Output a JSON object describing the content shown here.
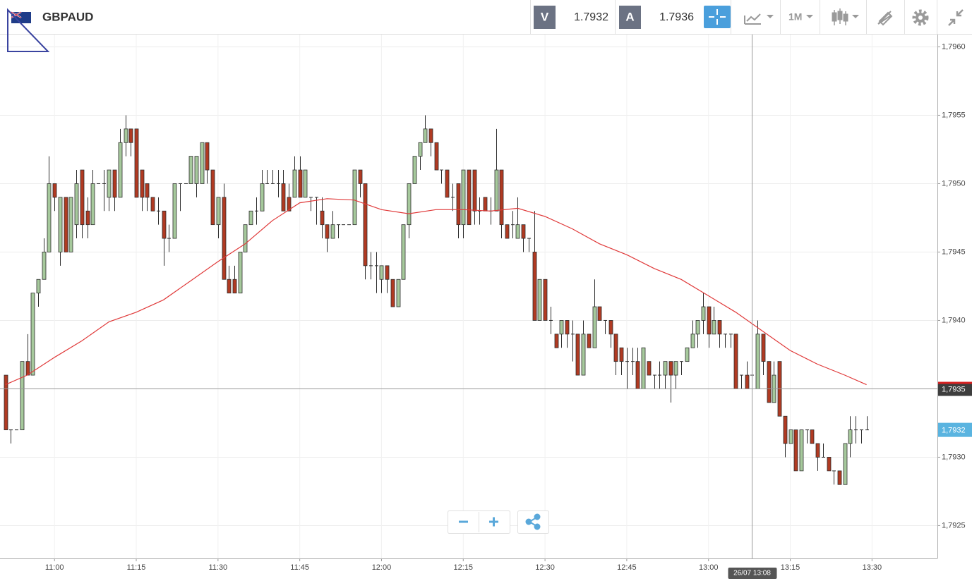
{
  "toolbar": {
    "symbol": "GBPAUD",
    "bid_label": "V",
    "bid": 1.7932,
    "ask_label": "A",
    "ask": 1.7936,
    "timeframe": "1M"
  },
  "chart_data": {
    "type": "candlestick",
    "up_color": "#a6c99c",
    "down_color": "#b03a22",
    "xlim": [
      "10:50",
      "13:42"
    ],
    "xticks": [
      "11:00",
      "11:15",
      "11:30",
      "11:45",
      "12:00",
      "12:15",
      "12:30",
      "12:45",
      "13:00",
      "13:15",
      "13:30"
    ],
    "ylim": [
      1.79226,
      1.79609
    ],
    "yticks": [
      {
        "value": 1.7925,
        "label": "1,7925"
      },
      {
        "value": 1.793,
        "label": "1,7930"
      },
      {
        "value": 1.7935,
        "label": "1,7935"
      },
      {
        "value": 1.794,
        "label": "1,7940"
      },
      {
        "value": 1.7945,
        "label": "1,7945"
      },
      {
        "value": 1.795,
        "label": "1,7950"
      },
      {
        "value": 1.7955,
        "label": "1,7955"
      },
      {
        "value": 1.796,
        "label": "1,7960"
      }
    ],
    "grid": true,
    "x": [
      "10:51",
      "10:52",
      "10:53",
      "10:54",
      "10:55",
      "10:56",
      "10:57",
      "10:58",
      "10:59",
      "11:00",
      "11:01",
      "11:02",
      "11:03",
      "11:04",
      "11:05",
      "11:06",
      "11:07",
      "11:08",
      "11:09",
      "11:10",
      "11:11",
      "11:12",
      "11:13",
      "11:14",
      "11:15",
      "11:16",
      "11:17",
      "11:18",
      "11:19",
      "11:20",
      "11:21",
      "11:22",
      "11:23",
      "11:24",
      "11:25",
      "11:26",
      "11:27",
      "11:28",
      "11:29",
      "11:30",
      "11:31",
      "11:32",
      "11:33",
      "11:34",
      "11:35",
      "11:36",
      "11:37",
      "11:38",
      "11:39",
      "11:40",
      "11:41",
      "11:42",
      "11:43",
      "11:44",
      "11:45",
      "11:46",
      "11:47",
      "11:48",
      "11:49",
      "11:50",
      "11:51",
      "11:52",
      "11:53",
      "11:54",
      "11:55",
      "11:56",
      "11:57",
      "11:58",
      "11:59",
      "12:00",
      "12:01",
      "12:02",
      "12:03",
      "12:04",
      "12:05",
      "12:06",
      "12:07",
      "12:08",
      "12:09",
      "12:10",
      "12:11",
      "12:12",
      "12:13",
      "12:14",
      "12:15",
      "12:16",
      "12:17",
      "12:18",
      "12:19",
      "12:20",
      "12:21",
      "12:22",
      "12:23",
      "12:24",
      "12:25",
      "12:26",
      "12:27",
      "12:28",
      "12:29",
      "12:30",
      "12:31",
      "12:32",
      "12:33",
      "12:34",
      "12:35",
      "12:36",
      "12:37",
      "12:38",
      "12:39",
      "12:40",
      "12:41",
      "12:42",
      "12:43",
      "12:44",
      "12:45",
      "12:46",
      "12:47",
      "12:48",
      "12:49",
      "12:50",
      "12:51",
      "12:52",
      "12:53",
      "12:54",
      "12:55",
      "12:56",
      "12:57",
      "12:58",
      "12:59",
      "13:00",
      "13:01",
      "13:02",
      "13:03",
      "13:04",
      "13:05",
      "13:06",
      "13:07",
      "13:08",
      "13:09",
      "13:10",
      "13:11",
      "13:12",
      "13:13",
      "13:14",
      "13:15",
      "13:16",
      "13:17",
      "13:18",
      "13:19",
      "13:20",
      "13:21",
      "13:22",
      "13:23",
      "13:24",
      "13:25",
      "13:26",
      "13:27",
      "13:28",
      "13:29"
    ],
    "open": [
      1.7936,
      1.7932,
      1.7932,
      1.7932,
      1.7937,
      1.7936,
      1.7942,
      1.7943,
      1.7945,
      1.795,
      1.7945,
      1.7949,
      1.7945,
      1.7947,
      1.7951,
      1.7948,
      1.7947,
      1.795,
      1.795,
      1.7949,
      1.7951,
      1.7949,
      1.7953,
      1.7954,
      1.7954,
      1.7951,
      1.795,
      1.7949,
      1.7948,
      1.7948,
      1.7946,
      1.7946,
      1.795,
      1.795,
      1.795,
      1.795,
      1.795,
      1.7953,
      1.7951,
      1.7947,
      1.7949,
      1.7943,
      1.7943,
      1.7942,
      1.7945,
      1.7947,
      1.7948,
      1.7948,
      1.795,
      1.795,
      1.795,
      1.795,
      1.7949,
      1.7949,
      1.7951,
      1.7949,
      1.7949,
      1.7949,
      1.7948,
      1.7947,
      1.7946,
      1.7947,
      1.7947,
      1.7947,
      1.7947,
      1.7951,
      1.795,
      1.7944,
      1.7944,
      1.7943,
      1.7944,
      1.7943,
      1.7941,
      1.7943,
      1.7947,
      1.795,
      1.7952,
      1.7953,
      1.7954,
      1.7953,
      1.7951,
      1.7951,
      1.7949,
      1.795,
      1.7947,
      1.7951,
      1.7951,
      1.7948,
      1.7949,
      1.7948,
      1.7948,
      1.7951,
      1.7947,
      1.7947,
      1.7946,
      1.7947,
      1.7946,
      1.7945,
      1.794,
      1.7943,
      1.794,
      1.7939,
      1.7939,
      1.794,
      1.7939,
      1.7939,
      1.7936,
      1.7939,
      1.7938,
      1.7941,
      1.794,
      1.794,
      1.7939,
      1.7938,
      1.7937,
      1.7937,
      1.7937,
      1.7935,
      1.7937,
      1.7936,
      1.7936,
      1.7936,
      1.7937,
      1.7936,
      1.7937,
      1.7937,
      1.7938,
      1.7939,
      1.794,
      1.7941,
      1.7939,
      1.794,
      1.7939,
      1.7939,
      1.7939,
      1.7936,
      1.7936,
      1.7936,
      1.7935,
      1.7939,
      1.7937,
      1.7934,
      1.7937,
      1.7933,
      1.7931,
      1.7932,
      1.7929,
      1.7932,
      1.7932,
      1.7931,
      1.793,
      1.793,
      1.7929,
      1.7929,
      1.7928,
      1.7931,
      1.7932,
      1.7932,
      1.7932
    ],
    "high": [
      1.7936,
      1.7932,
      1.7932,
      1.7937,
      1.7939,
      1.7942,
      1.7943,
      1.7946,
      1.7952,
      1.795,
      1.7949,
      1.7949,
      1.7949,
      1.7951,
      1.7951,
      1.7949,
      1.7951,
      1.795,
      1.7951,
      1.7951,
      1.7951,
      1.7954,
      1.7955,
      1.7954,
      1.7954,
      1.7951,
      1.795,
      1.7949,
      1.7949,
      1.7948,
      1.7947,
      1.795,
      1.795,
      1.795,
      1.7952,
      1.7952,
      1.7953,
      1.7953,
      1.7951,
      1.7949,
      1.795,
      1.7944,
      1.7944,
      1.7945,
      1.7947,
      1.7948,
      1.7949,
      1.7951,
      1.7951,
      1.7951,
      1.7951,
      1.7951,
      1.795,
      1.7952,
      1.7952,
      1.7951,
      1.7949,
      1.7949,
      1.7949,
      1.7947,
      1.7948,
      1.7947,
      1.7947,
      1.7947,
      1.7951,
      1.7951,
      1.795,
      1.7945,
      1.7945,
      1.7944,
      1.7944,
      1.7943,
      1.7943,
      1.7947,
      1.795,
      1.7952,
      1.7953,
      1.7955,
      1.7954,
      1.7953,
      1.7951,
      1.7951,
      1.795,
      1.795,
      1.7951,
      1.7951,
      1.7951,
      1.7949,
      1.7949,
      1.7949,
      1.7954,
      1.7951,
      1.7947,
      1.7948,
      1.7949,
      1.7947,
      1.7946,
      1.7948,
      1.7943,
      1.7943,
      1.7941,
      1.7939,
      1.794,
      1.794,
      1.794,
      1.7939,
      1.794,
      1.7939,
      1.7943,
      1.7941,
      1.794,
      1.794,
      1.7939,
      1.7938,
      1.7938,
      1.7938,
      1.7938,
      1.7938,
      1.7937,
      1.7936,
      1.7937,
      1.7937,
      1.7937,
      1.7937,
      1.7937,
      1.7938,
      1.794,
      1.794,
      1.7942,
      1.7941,
      1.7941,
      1.794,
      1.7939,
      1.7939,
      1.7939,
      1.7936,
      1.7937,
      1.7937,
      1.794,
      1.7939,
      1.7937,
      1.7937,
      1.7937,
      1.7933,
      1.7932,
      1.7932,
      1.7932,
      1.7932,
      1.7932,
      1.7931,
      1.7931,
      1.793,
      1.7929,
      1.7929,
      1.7931,
      1.7933,
      1.7933,
      1.7932,
      1.7933
    ],
    "low": [
      1.7932,
      1.7931,
      1.7932,
      1.7932,
      1.7936,
      1.7936,
      1.7941,
      1.7943,
      1.7945,
      1.7948,
      1.7944,
      1.7945,
      1.7945,
      1.7946,
      1.7946,
      1.7946,
      1.7947,
      1.795,
      1.7948,
      1.7948,
      1.7948,
      1.7949,
      1.7952,
      1.7952,
      1.7949,
      1.7948,
      1.7948,
      1.7948,
      1.7947,
      1.7944,
      1.7945,
      1.7946,
      1.7948,
      1.795,
      1.795,
      1.7949,
      1.795,
      1.795,
      1.7947,
      1.7946,
      1.7943,
      1.7942,
      1.7942,
      1.7942,
      1.7945,
      1.7947,
      1.7947,
      1.7948,
      1.795,
      1.795,
      1.7949,
      1.7948,
      1.7948,
      1.7949,
      1.7949,
      1.7949,
      1.7948,
      1.7947,
      1.7946,
      1.7945,
      1.7946,
      1.7946,
      1.7947,
      1.7947,
      1.7947,
      1.7949,
      1.7943,
      1.7943,
      1.7942,
      1.7942,
      1.7942,
      1.7941,
      1.7941,
      1.7943,
      1.7946,
      1.795,
      1.7951,
      1.7953,
      1.7952,
      1.7951,
      1.795,
      1.7949,
      1.7948,
      1.7946,
      1.7946,
      1.7947,
      1.7947,
      1.7947,
      1.7948,
      1.7947,
      1.7948,
      1.7946,
      1.7946,
      1.7946,
      1.7946,
      1.7945,
      1.7945,
      1.794,
      1.794,
      1.794,
      1.7939,
      1.7938,
      1.7938,
      1.7938,
      1.7937,
      1.7936,
      1.7936,
      1.7938,
      1.7938,
      1.794,
      1.7939,
      1.7938,
      1.7936,
      1.7936,
      1.7935,
      1.7936,
      1.7935,
      1.7935,
      1.7936,
      1.7935,
      1.7935,
      1.7935,
      1.7934,
      1.7935,
      1.7936,
      1.7937,
      1.7938,
      1.7938,
      1.7939,
      1.7938,
      1.7939,
      1.7938,
      1.7938,
      1.7938,
      1.7935,
      1.7935,
      1.7935,
      1.7935,
      1.7935,
      1.7936,
      1.7934,
      1.7934,
      1.7933,
      1.793,
      1.7931,
      1.7929,
      1.7929,
      1.7931,
      1.7931,
      1.7929,
      1.793,
      1.7929,
      1.7928,
      1.7928,
      1.7928,
      1.793,
      1.7931,
      1.7931,
      1.7932
    ],
    "close": [
      1.7932,
      1.7932,
      1.7932,
      1.7937,
      1.7936,
      1.7942,
      1.7943,
      1.7945,
      1.795,
      1.7949,
      1.7949,
      1.7945,
      1.7949,
      1.795,
      1.7947,
      1.7947,
      1.795,
      1.795,
      1.795,
      1.7951,
      1.7949,
      1.7953,
      1.7954,
      1.7953,
      1.7949,
      1.7949,
      1.7949,
      1.7948,
      1.7948,
      1.7946,
      1.7946,
      1.795,
      1.795,
      1.795,
      1.7952,
      1.7952,
      1.7953,
      1.7951,
      1.7947,
      1.7949,
      1.7943,
      1.7942,
      1.7942,
      1.7945,
      1.7947,
      1.7948,
      1.7948,
      1.795,
      1.795,
      1.795,
      1.795,
      1.7948,
      1.7948,
      1.7951,
      1.7949,
      1.7951,
      1.7949,
      1.7949,
      1.7947,
      1.7946,
      1.7947,
      1.7947,
      1.7947,
      1.7947,
      1.7951,
      1.795,
      1.7944,
      1.7944,
      1.7944,
      1.7944,
      1.7943,
      1.7941,
      1.7943,
      1.7947,
      1.795,
      1.7952,
      1.7953,
      1.7954,
      1.7953,
      1.7951,
      1.7951,
      1.7949,
      1.7949,
      1.7947,
      1.7951,
      1.7947,
      1.7948,
      1.7948,
      1.7948,
      1.7948,
      1.7951,
      1.7947,
      1.7946,
      1.7947,
      1.7947,
      1.7946,
      1.7946,
      1.794,
      1.7943,
      1.794,
      1.794,
      1.7938,
      1.794,
      1.7939,
      1.7939,
      1.7936,
      1.7939,
      1.7938,
      1.7941,
      1.794,
      1.794,
      1.7939,
      1.7937,
      1.7937,
      1.7937,
      1.7937,
      1.7935,
      1.7938,
      1.7936,
      1.7936,
      1.7936,
      1.7937,
      1.7936,
      1.7937,
      1.7937,
      1.7938,
      1.7939,
      1.794,
      1.7941,
      1.7939,
      1.794,
      1.7939,
      1.7939,
      1.7939,
      1.7935,
      1.7936,
      1.7935,
      1.7936,
      1.7939,
      1.7937,
      1.7934,
      1.7936,
      1.7933,
      1.7931,
      1.7932,
      1.7929,
      1.7932,
      1.7932,
      1.7931,
      1.793,
      1.793,
      1.7929,
      1.7929,
      1.7928,
      1.7931,
      1.7932,
      1.7932,
      1.7932,
      1.7932
    ],
    "moving_average": {
      "color": "#e03a3a",
      "x": [
        "10:51",
        "10:55",
        "11:00",
        "11:05",
        "11:10",
        "11:15",
        "11:20",
        "11:25",
        "11:30",
        "11:35",
        "11:40",
        "11:45",
        "11:50",
        "11:55",
        "12:00",
        "12:05",
        "12:10",
        "12:15",
        "12:20",
        "12:25",
        "12:30",
        "12:35",
        "12:40",
        "12:45",
        "12:50",
        "12:55",
        "13:00",
        "13:05",
        "13:10",
        "13:15",
        "13:20",
        "13:25",
        "13:29"
      ],
      "values": [
        1.79353,
        1.7936,
        1.79373,
        1.79385,
        1.79399,
        1.79406,
        1.79415,
        1.79429,
        1.79443,
        1.79456,
        1.79473,
        1.79486,
        1.79489,
        1.79488,
        1.79481,
        1.79478,
        1.79481,
        1.79481,
        1.7948,
        1.79482,
        1.79476,
        1.79467,
        1.79456,
        1.79448,
        1.79438,
        1.7943,
        1.79418,
        1.79406,
        1.79392,
        1.79378,
        1.79368,
        1.7936,
        1.79353
      ]
    },
    "crosshair": {
      "x": "13:08",
      "x_label": "26/07 13:08",
      "y": 1.7935,
      "y_label": "1,7935"
    },
    "last_price": {
      "value": 1.7932,
      "label": "1,7932"
    }
  }
}
